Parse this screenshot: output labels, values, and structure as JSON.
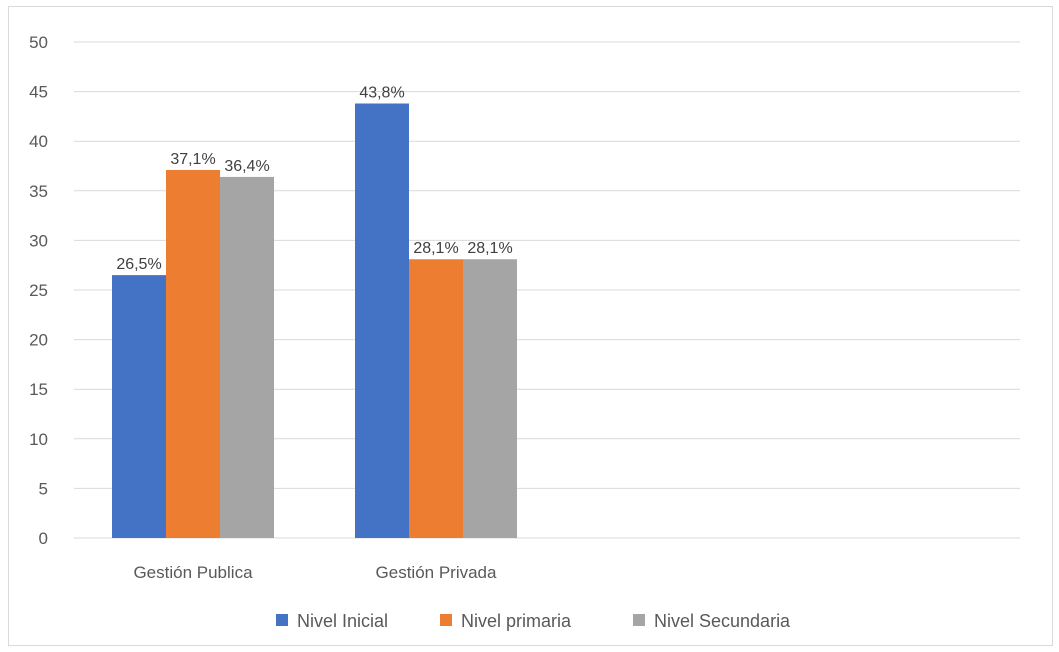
{
  "chart_data": {
    "type": "bar",
    "categories": [
      "Gestión Publica",
      "Gestión Privada"
    ],
    "series": [
      {
        "name": "Nivel Inicial",
        "values": [
          26.5,
          43.8
        ],
        "labels": [
          "26,5%",
          "43,8%"
        ],
        "color": "#4472c4"
      },
      {
        "name": "Nivel primaria",
        "values": [
          37.1,
          28.1
        ],
        "labels": [
          "37,1%",
          "28,1%"
        ],
        "color": "#ed7d31"
      },
      {
        "name": "Nivel Secundaria",
        "values": [
          36.4,
          28.1
        ],
        "labels": [
          "36,4%",
          "28,1%"
        ],
        "color": "#a5a5a5"
      }
    ],
    "title": "",
    "xlabel": "",
    "ylabel": "",
    "ylim": [
      0,
      50
    ],
    "yticks": [
      0,
      5,
      10,
      15,
      20,
      25,
      30,
      35,
      40,
      45,
      50
    ],
    "grid": true,
    "legend_position": "bottom"
  }
}
